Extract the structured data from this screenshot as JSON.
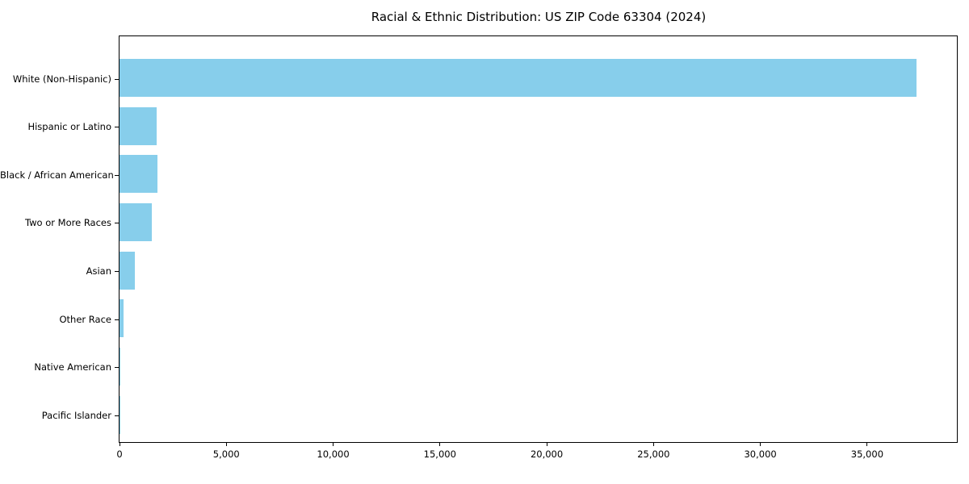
{
  "title": "Racial & Ethnic Distribution: US ZIP Code 63304 (2024)",
  "chart_data": {
    "type": "bar",
    "orientation": "horizontal",
    "title": "Racial & Ethnic Distribution: US ZIP Code 63304 (2024)",
    "categories": [
      "White (Non-Hispanic)",
      "Hispanic or Latino",
      "Black / African American",
      "Two or More Races",
      "Asian",
      "Other Race",
      "Native American",
      "Pacific Islander"
    ],
    "values": [
      37300,
      1740,
      1780,
      1500,
      710,
      200,
      30,
      10
    ],
    "xlabel": "",
    "ylabel": "",
    "xlim": [
      0,
      39200
    ],
    "xticks": [
      0,
      5000,
      10000,
      15000,
      20000,
      25000,
      30000,
      35000
    ],
    "xtick_labels": [
      "0",
      "5,000",
      "10,000",
      "15,000",
      "20,000",
      "25,000",
      "30,000",
      "35,000"
    ],
    "bar_color": "#87CEEB",
    "text_color": "#000000",
    "background_color": "#ffffff",
    "grid": false,
    "legend": null
  }
}
